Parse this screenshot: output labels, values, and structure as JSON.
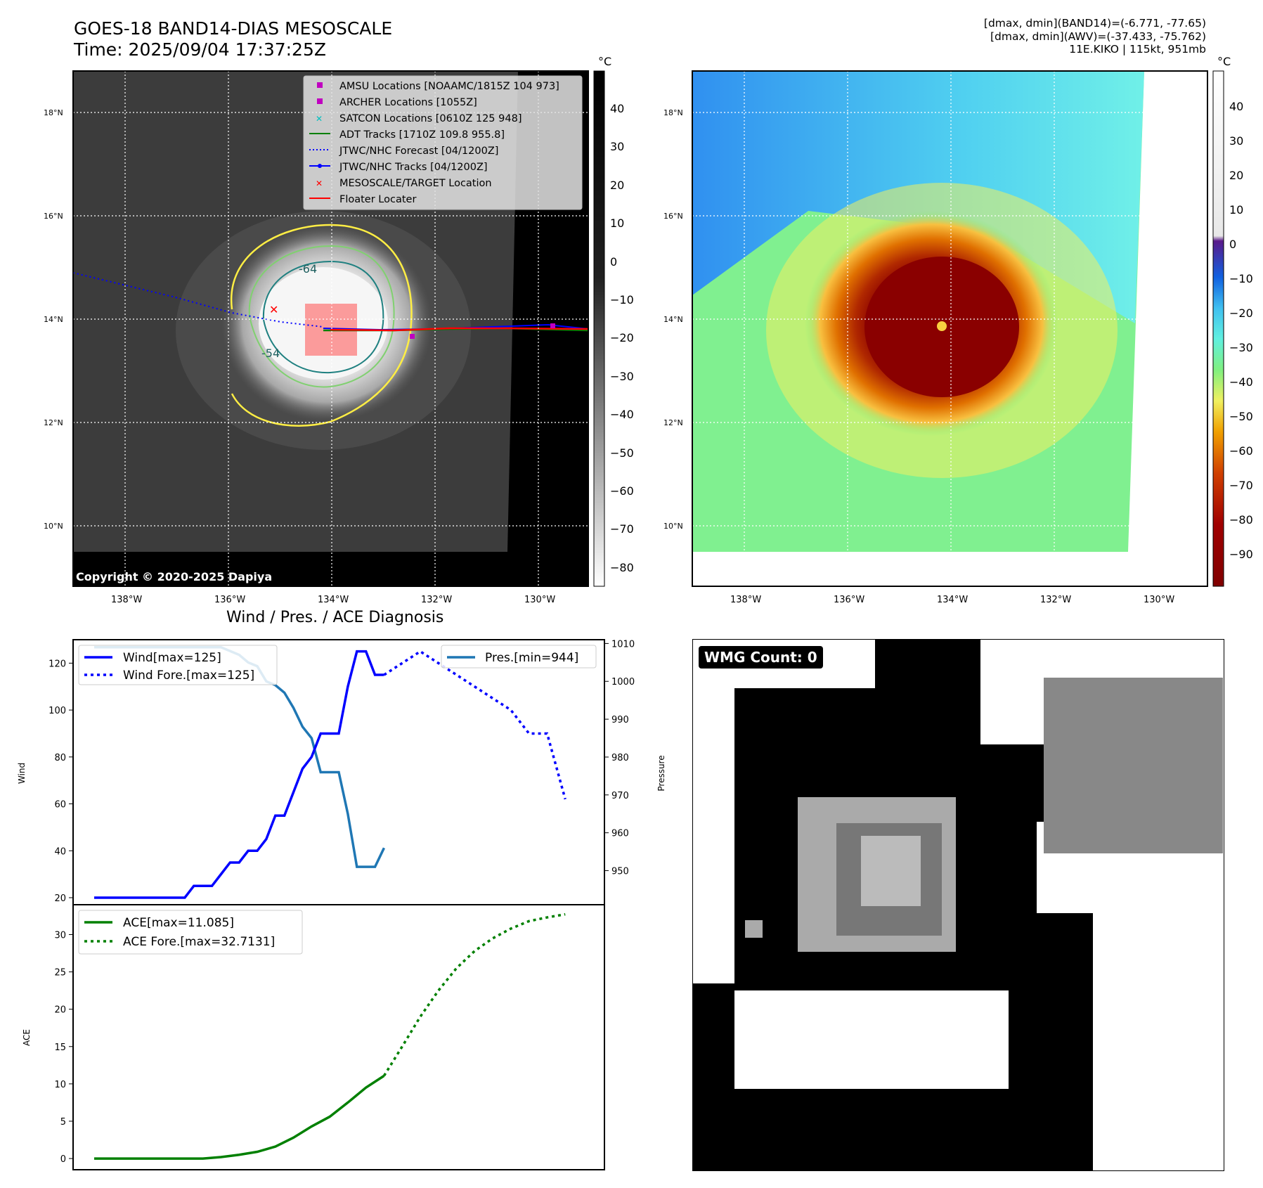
{
  "header": {
    "title_line1": "GOES-18 BAND14-DIAS MESOSCALE",
    "title_line2": "Time: 2025/09/04 17:37:25Z",
    "info_line1": "[dmax, dmin](BAND14)=(-6.771, -77.65)",
    "info_line2": "[dmax, dmin](AWV)=(-37.433, -75.762)",
    "info_line3": "11E.KIKO | 115kt, 951mb"
  },
  "map": {
    "lat_labels": [
      "18°N",
      "16°N",
      "14°N",
      "12°N",
      "10°N"
    ],
    "lon_labels": [
      "138°W",
      "136°W",
      "134°W",
      "132°W",
      "130°W"
    ],
    "copyright": "Copyright © 2020-2025 Dapiya",
    "contour_labels": [
      "-64",
      "-54"
    ],
    "legend": [
      {
        "label": "AMSU Locations [NOAAMC/1815Z 104 973]",
        "marker": "square",
        "color": "#c000c0"
      },
      {
        "label": "ARCHER Locations [1055Z]",
        "marker": "square",
        "color": "#c000c0"
      },
      {
        "label": "SATCON Locations [0610Z 125 948]",
        "marker": "x",
        "color": "#00c0c0"
      },
      {
        "label": "ADT Tracks [1710Z 109.8 955.8]",
        "marker": "line",
        "color": "#008000"
      },
      {
        "label": "JTWC/NHC Forecast [04/1200Z]",
        "marker": "dotted",
        "color": "#0000ff"
      },
      {
        "label": "JTWC/NHC Tracks [04/1200Z]",
        "marker": "line-dot",
        "color": "#0000ff"
      },
      {
        "label": "MESOSCALE/TARGET Location",
        "marker": "x",
        "color": "#ff0000"
      },
      {
        "label": "Floater Locater",
        "marker": "line",
        "color": "#ff0000"
      }
    ]
  },
  "colorbar_gray": {
    "unit": "°C",
    "ticks": [
      "40",
      "30",
      "20",
      "10",
      "0",
      "−10",
      "−20",
      "−30",
      "−40",
      "−50",
      "−60",
      "−70",
      "−80"
    ]
  },
  "colorbar_color": {
    "unit": "°C",
    "ticks": [
      "40",
      "30",
      "20",
      "10",
      "0",
      "−10",
      "−20",
      "−30",
      "−40",
      "−50",
      "−60",
      "−70",
      "−80",
      "−90"
    ]
  },
  "wmg": {
    "label": "WMG Count: 0"
  },
  "chart_data": [
    {
      "type": "line",
      "title": "Wind / Pres. / ACE Diagnosis",
      "ylabel": "Wind",
      "ylabel_right": "Pressure",
      "ylim": [
        17,
        130
      ],
      "ylim_right": [
        941,
        1011
      ],
      "yticks": [
        "120",
        "100",
        "80",
        "60",
        "40",
        "20"
      ],
      "yticks_right": [
        "1010",
        "1000",
        "990",
        "980",
        "970",
        "960",
        "950"
      ],
      "legend_left": [
        "Wind[max=125]",
        "Wind Fore.[max=125]"
      ],
      "legend_right": [
        "Pres.[min=944]"
      ],
      "x": [
        0,
        1,
        2,
        3,
        4,
        5,
        6,
        7,
        8,
        9,
        10,
        11,
        12,
        13,
        14,
        15,
        16,
        17,
        18,
        19,
        20,
        21,
        22,
        23,
        24,
        25,
        26,
        27,
        28,
        29,
        30,
        31,
        32,
        33,
        34,
        35,
        36,
        37,
        38,
        39,
        40,
        41,
        42,
        43,
        44,
        45,
        46,
        47,
        48,
        49,
        50,
        51
      ],
      "series": [
        {
          "name": "Wind",
          "color": "#0000ff",
          "style": "solid",
          "x": [
            0,
            2,
            4,
            6,
            8,
            10,
            11,
            12,
            13,
            14,
            15,
            16,
            17,
            18,
            19,
            20,
            21,
            22,
            23,
            24,
            25,
            26,
            27,
            28,
            29,
            30,
            31,
            32
          ],
          "values": [
            20,
            20,
            20,
            20,
            20,
            20,
            25,
            25,
            25,
            30,
            35,
            35,
            40,
            40,
            45,
            55,
            55,
            65,
            75,
            80,
            90,
            90,
            90,
            110,
            125,
            125,
            115,
            115
          ]
        },
        {
          "name": "Wind Fore.",
          "color": "#0000ff",
          "style": "dotted",
          "x": [
            32,
            34,
            36,
            38,
            40,
            42,
            44,
            46,
            48,
            50,
            52
          ],
          "values": [
            115,
            120,
            125,
            120,
            115,
            110,
            105,
            100,
            90,
            90,
            62
          ]
        },
        {
          "name": "Pres.",
          "color": "#1f77b4",
          "style": "solid",
          "axis": "right",
          "x": [
            0,
            2,
            4,
            6,
            8,
            10,
            12,
            14,
            15,
            16,
            17,
            18,
            19,
            20,
            21,
            22,
            23,
            24,
            25,
            26,
            27,
            28,
            29,
            30,
            31,
            32
          ],
          "values": [
            1009,
            1009,
            1009,
            1009,
            1009,
            1009,
            1009,
            1009,
            1008,
            1007,
            1005,
            1004,
            1000,
            999,
            997,
            993,
            988,
            985,
            976,
            976,
            976,
            965,
            951,
            951,
            951,
            956
          ]
        }
      ]
    },
    {
      "type": "line",
      "ylabel": "ACE",
      "ylim": [
        -1.5,
        34
      ],
      "yticks": [
        "30",
        "25",
        "20",
        "15",
        "10",
        "5",
        "0"
      ],
      "legend": [
        "ACE[max=11.085]",
        "ACE Fore.[max=32.7131]"
      ],
      "series": [
        {
          "name": "ACE",
          "color": "#008000",
          "style": "solid",
          "x": [
            0,
            4,
            8,
            12,
            14,
            16,
            18,
            20,
            22,
            24,
            26,
            28,
            30,
            32
          ],
          "values": [
            0,
            0,
            0,
            0,
            0.2,
            0.5,
            0.9,
            1.6,
            2.8,
            4.3,
            5.6,
            7.5,
            9.5,
            11.085
          ]
        },
        {
          "name": "ACE Fore.",
          "color": "#008000",
          "style": "dotted",
          "x": [
            32,
            34,
            36,
            38,
            40,
            42,
            44,
            46,
            48,
            50,
            52
          ],
          "values": [
            11.085,
            15,
            19,
            22.5,
            25.5,
            27.8,
            29.5,
            30.8,
            31.8,
            32.3,
            32.7131
          ]
        }
      ]
    }
  ]
}
